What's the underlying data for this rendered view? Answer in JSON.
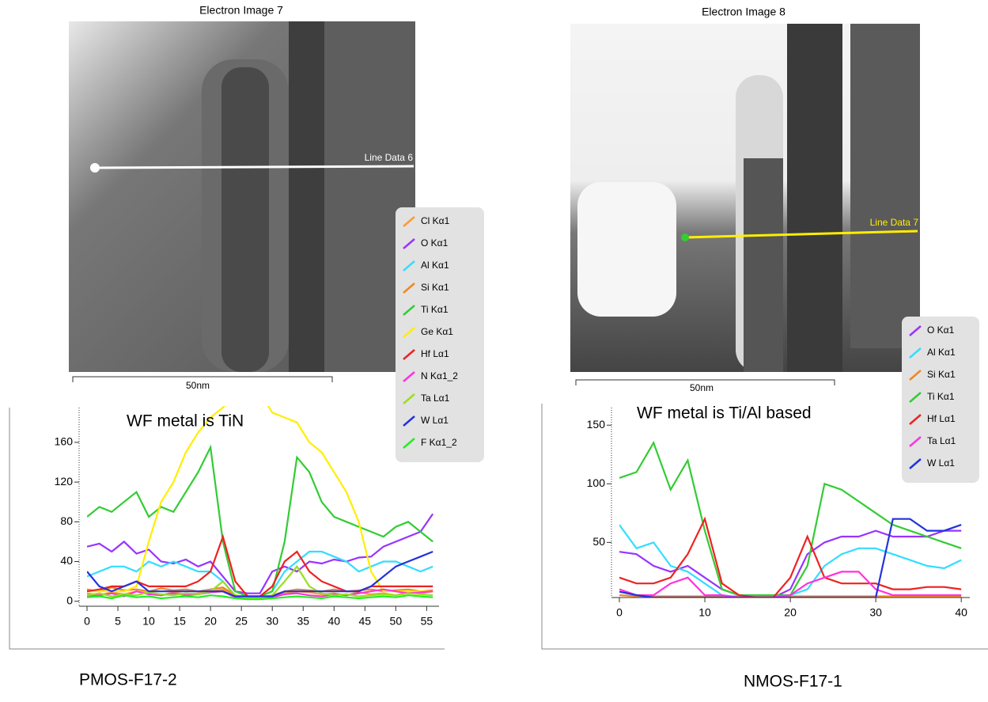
{
  "images": [
    {
      "title": "Electron Image 7",
      "line_label": "Line Data 6",
      "scale_label": "50nm"
    },
    {
      "title": "Electron Image 8",
      "line_label": "Line Data 7",
      "scale_label": "50nm"
    }
  ],
  "captions": [
    "PMOS-F17-2",
    "NMOS-F17-1"
  ],
  "chart_data": [
    {
      "type": "line",
      "annotation": "WF metal is TiN",
      "legend": "top-right",
      "x": [
        0,
        2,
        4,
        6,
        8,
        10,
        12,
        14,
        16,
        18,
        20,
        22,
        24,
        26,
        28,
        30,
        32,
        34,
        36,
        38,
        40,
        42,
        44,
        46,
        48,
        50,
        52,
        54,
        56
      ],
      "xlim": [
        0,
        57
      ],
      "ylim": [
        -5,
        195
      ],
      "xticks": [
        0,
        5,
        10,
        15,
        20,
        25,
        30,
        35,
        40,
        45,
        50,
        55
      ],
      "yticks": [
        0,
        40,
        80,
        120,
        160
      ],
      "series": [
        {
          "name": "Cl Kα1",
          "color": "#ff9933",
          "values": [
            8,
            6,
            9,
            7,
            10,
            8,
            6,
            9,
            7,
            8,
            10,
            12,
            5,
            3,
            3,
            5,
            8,
            10,
            9,
            7,
            8,
            6,
            9,
            7,
            8,
            6,
            9,
            8,
            10
          ]
        },
        {
          "name": "O Kα1",
          "color": "#9933ff",
          "values": [
            55,
            58,
            50,
            60,
            48,
            52,
            40,
            38,
            42,
            35,
            40,
            25,
            10,
            8,
            8,
            30,
            35,
            30,
            40,
            38,
            42,
            40,
            44,
            45,
            55,
            60,
            65,
            70,
            88
          ]
        },
        {
          "name": "Al Kα1",
          "color": "#33ddff",
          "values": [
            25,
            30,
            35,
            35,
            30,
            40,
            35,
            40,
            35,
            30,
            30,
            20,
            5,
            5,
            5,
            10,
            30,
            40,
            50,
            50,
            45,
            40,
            30,
            35,
            40,
            40,
            35,
            30,
            35
          ]
        },
        {
          "name": "Si Kα1",
          "color": "#ee8822",
          "values": [
            12,
            10,
            14,
            11,
            12,
            10,
            13,
            11,
            12,
            10,
            12,
            14,
            6,
            4,
            4,
            6,
            10,
            12,
            11,
            10,
            12,
            10,
            11,
            12,
            10,
            11,
            12,
            10,
            11
          ]
        },
        {
          "name": "Ti Kα1",
          "color": "#33cc33",
          "values": [
            85,
            95,
            90,
            100,
            110,
            85,
            95,
            90,
            110,
            130,
            155,
            60,
            10,
            5,
            5,
            10,
            60,
            145,
            130,
            100,
            85,
            80,
            75,
            70,
            65,
            75,
            80,
            70,
            60
          ]
        },
        {
          "name": "Ge Kα1",
          "color": "#ffee00",
          "values": [
            10,
            10,
            10,
            10,
            15,
            60,
            100,
            120,
            150,
            170,
            185,
            195,
            210,
            210,
            210,
            190,
            185,
            180,
            160,
            150,
            130,
            110,
            80,
            30,
            10,
            10,
            10,
            10,
            10
          ]
        },
        {
          "name": "Hf Lα1",
          "color": "#ee2222",
          "values": [
            10,
            12,
            15,
            15,
            20,
            15,
            15,
            15,
            15,
            20,
            30,
            65,
            20,
            5,
            5,
            15,
            40,
            50,
            30,
            20,
            15,
            10,
            10,
            15,
            15,
            15,
            15,
            15,
            15
          ]
        },
        {
          "name": "N Kα1_2",
          "color": "#ff33dd",
          "values": [
            5,
            6,
            8,
            5,
            10,
            7,
            6,
            8,
            6,
            7,
            9,
            10,
            4,
            3,
            3,
            4,
            7,
            8,
            6,
            5,
            7,
            6,
            8,
            10,
            12,
            10,
            8,
            9,
            10
          ]
        },
        {
          "name": "Ta Lα1",
          "color": "#99dd22",
          "values": [
            6,
            8,
            5,
            7,
            6,
            9,
            7,
            6,
            8,
            7,
            10,
            20,
            6,
            3,
            3,
            6,
            20,
            35,
            15,
            8,
            6,
            7,
            5,
            6,
            7,
            6,
            8,
            7,
            6
          ]
        },
        {
          "name": "W Lα1",
          "color": "#2233dd",
          "values": [
            30,
            15,
            10,
            15,
            20,
            10,
            10,
            10,
            10,
            10,
            10,
            10,
            5,
            5,
            5,
            5,
            10,
            10,
            10,
            10,
            10,
            10,
            10,
            15,
            25,
            35,
            40,
            45,
            50
          ]
        },
        {
          "name": "F Kα1_2",
          "color": "#22ee22",
          "values": [
            4,
            5,
            3,
            6,
            4,
            5,
            3,
            4,
            5,
            4,
            6,
            5,
            3,
            2,
            2,
            3,
            4,
            5,
            4,
            3,
            5,
            4,
            3,
            4,
            5,
            4,
            6,
            5,
            4
          ]
        }
      ]
    },
    {
      "type": "line",
      "annotation": "WF metal is Ti/Al based",
      "legend": "top-right",
      "x": [
        0,
        2,
        4,
        6,
        8,
        10,
        12,
        14,
        16,
        18,
        20,
        22,
        24,
        26,
        28,
        30,
        32,
        34,
        36,
        38,
        40
      ],
      "xlim": [
        0,
        41
      ],
      "ylim": [
        3,
        165
      ],
      "xticks": [
        0,
        10,
        20,
        30,
        40
      ],
      "yticks": [
        50,
        100,
        150
      ],
      "series": [
        {
          "name": "O Kα1",
          "color": "#9933ff",
          "values": [
            42,
            40,
            30,
            25,
            30,
            20,
            10,
            5,
            3,
            3,
            10,
            40,
            50,
            55,
            55,
            60,
            55,
            55,
            55,
            60,
            60
          ]
        },
        {
          "name": "Al Kα1",
          "color": "#33ddff",
          "values": [
            65,
            45,
            50,
            30,
            25,
            15,
            5,
            3,
            3,
            3,
            5,
            10,
            30,
            40,
            45,
            45,
            40,
            35,
            30,
            28,
            35
          ]
        },
        {
          "name": "Si Kα1",
          "color": "#ee8822",
          "values": [
            5,
            4,
            4,
            4,
            4,
            4,
            4,
            4,
            4,
            4,
            4,
            4,
            4,
            4,
            4,
            4,
            4,
            4,
            4,
            4,
            4
          ]
        },
        {
          "name": "Ti Kα1",
          "color": "#33cc33",
          "values": [
            105,
            110,
            135,
            95,
            120,
            60,
            10,
            5,
            5,
            5,
            5,
            30,
            100,
            95,
            85,
            75,
            65,
            60,
            55,
            50,
            45
          ]
        },
        {
          "name": "Hf Lα1",
          "color": "#ee2222",
          "values": [
            20,
            15,
            15,
            20,
            40,
            70,
            15,
            5,
            3,
            3,
            20,
            55,
            20,
            15,
            15,
            15,
            10,
            10,
            12,
            12,
            10
          ]
        },
        {
          "name": "Ta Lα1",
          "color": "#ff33dd",
          "values": [
            10,
            5,
            5,
            15,
            20,
            5,
            5,
            3,
            3,
            3,
            5,
            15,
            20,
            25,
            25,
            10,
            5,
            5,
            5,
            5,
            5
          ]
        },
        {
          "name": "W Lα1",
          "color": "#2233dd",
          "values": [
            8,
            5,
            3,
            3,
            3,
            3,
            3,
            3,
            3,
            3,
            3,
            3,
            3,
            3,
            3,
            3,
            70,
            70,
            60,
            60,
            65
          ]
        }
      ]
    }
  ]
}
